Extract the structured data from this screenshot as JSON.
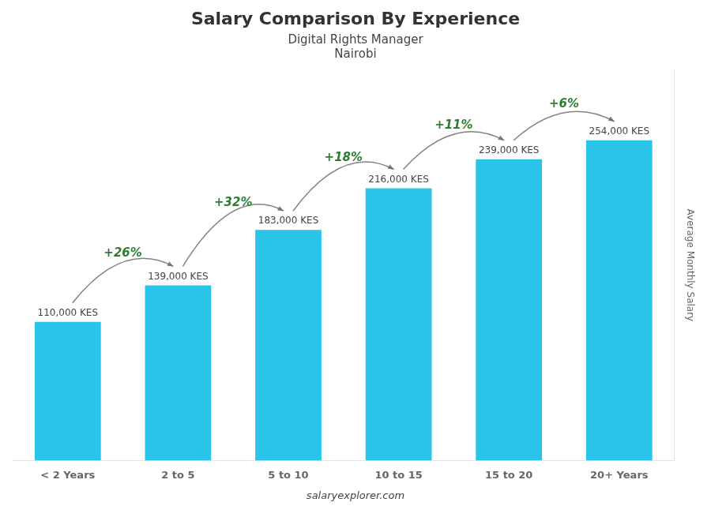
{
  "chart_data": {
    "type": "bar",
    "title": "Salary Comparison By Experience",
    "subtitle": [
      "Digital Rights Manager",
      "Nairobi"
    ],
    "y_label": "Average Monthly Salary",
    "footer": "salaryexplorer.com",
    "categories": [
      "< 2 Years",
      "2 to 5",
      "5 to 10",
      "10 to 15",
      "15 to 20",
      "20+ Years"
    ],
    "values": [
      110000,
      139000,
      183000,
      216000,
      239000,
      254000
    ],
    "value_labels": [
      "110,000 KES",
      "139,000 KES",
      "183,000 KES",
      "216,000 KES",
      "239,000 KES",
      "254,000 KES"
    ],
    "data_labels": true,
    "annotations": [
      "+26%",
      "+32%",
      "+18%",
      "+11%",
      "+6%"
    ],
    "color": "#29C4E8",
    "ylim": [
      0,
      310000
    ],
    "grid": false,
    "tick_labels": "x"
  }
}
